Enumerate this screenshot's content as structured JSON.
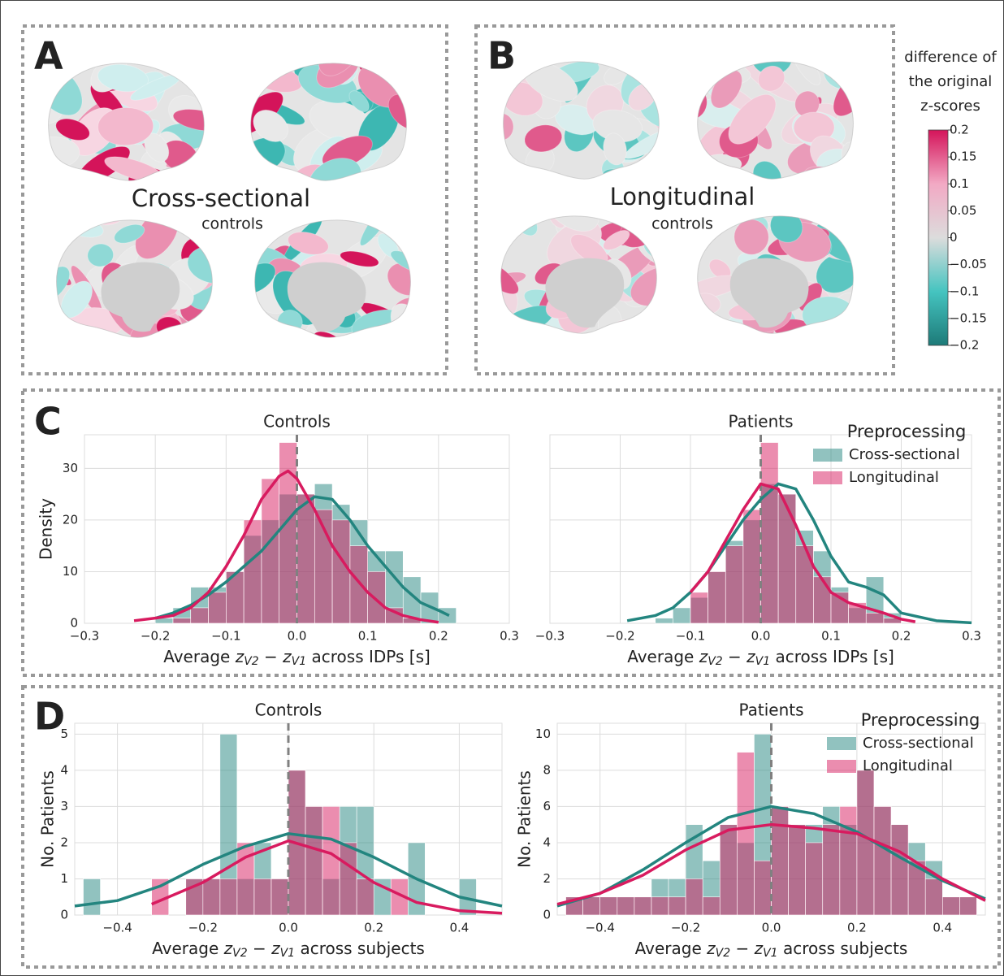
{
  "figure_panels": [
    {
      "label": "A",
      "title": "Cross-sectional",
      "subtitle": "controls"
    },
    {
      "label": "B",
      "title": "Longitudinal",
      "subtitle": "controls"
    }
  ],
  "colorbar": {
    "title": [
      "difference of",
      "the original",
      "z-scores"
    ],
    "lim": [
      -0.2,
      0.2
    ],
    "ticks": [
      0.2,
      0.15,
      0.1,
      0.05,
      0,
      {
        "value": -0.05,
        "label": "−0.05"
      },
      {
        "value": -0.1,
        "label": "−0.1"
      },
      {
        "value": -0.15,
        "label": "−0.15"
      },
      {
        "value": -0.2,
        "label": "−0.2"
      }
    ],
    "colors": [
      "#1d7a78",
      "#45c4c0",
      "#dcdcdc",
      "#f2a9c4",
      "#d4145a"
    ]
  },
  "row_labels": [
    "C",
    "D"
  ],
  "chart_data": [
    {
      "type": "histogram",
      "title": "Controls",
      "ylabel": "Density",
      "xlabel": [
        "Average ",
        "z",
        "V2",
        " − ",
        "z",
        "V1",
        " across IDPs [s]"
      ],
      "xlim": [
        -0.3,
        0.3
      ],
      "ylim": [
        0,
        36.5
      ],
      "xticks": [
        {
          "value": -0.3,
          "label": "−0.3"
        },
        {
          "value": -0.2,
          "label": "−0.2"
        },
        {
          "value": -0.1,
          "label": "−0.1"
        },
        {
          "value": 0,
          "label": "0.0"
        },
        0.1,
        0.2,
        0.3
      ],
      "yticks": [
        0,
        10,
        20,
        30
      ],
      "grid": true,
      "vline": 0,
      "series": [
        {
          "color": "#23857f",
          "bins": [
            -0.2,
            -0.175,
            -0.15,
            -0.125,
            -0.1,
            -0.075,
            -0.05,
            -0.025,
            0,
            0.025,
            0.05,
            0.075,
            0.1,
            0.125,
            0.15,
            0.175,
            0.2,
            0.225
          ],
          "values": [
            1,
            3,
            7,
            7,
            10,
            17,
            20,
            25,
            25,
            27,
            23,
            20,
            14,
            14,
            9,
            6,
            3
          ],
          "kde": {
            "x": [
              -0.2,
              -0.175,
              -0.15,
              -0.125,
              -0.1,
              -0.075,
              -0.05,
              -0.025,
              0,
              0.025,
              0.05,
              0.075,
              0.1,
              0.125,
              0.15,
              0.175,
              0.2,
              0.215
            ],
            "values": [
              1,
              2,
              3.5,
              5.5,
              8,
              11,
              14,
              18,
              22,
              24.5,
              24,
              20,
              15,
              11,
              7,
              4,
              2.5,
              1.5
            ]
          }
        },
        {
          "color": "#d81b5f",
          "bins": [
            -0.2,
            -0.175,
            -0.15,
            -0.125,
            -0.1,
            -0.075,
            -0.05,
            -0.025,
            0,
            0.025,
            0.05,
            0.075,
            0.1,
            0.125,
            0.15,
            0.175,
            0.2
          ],
          "values": [
            0,
            1,
            3,
            6,
            10,
            20,
            28,
            35,
            25,
            22,
            20,
            15,
            10,
            3,
            1,
            0
          ],
          "kde": {
            "x": [
              -0.23,
              -0.2,
              -0.175,
              -0.15,
              -0.125,
              -0.1,
              -0.075,
              -0.05,
              -0.025,
              -0.0125,
              0,
              0.025,
              0.05,
              0.075,
              0.1,
              0.125,
              0.15,
              0.175,
              0.2
            ],
            "values": [
              0.5,
              1,
              1.5,
              3,
              6,
              11,
              17,
              24,
              28.5,
              29.5,
              28,
              22,
              15,
              10,
              6,
              3,
              1.5,
              0.7,
              0.2
            ]
          }
        }
      ]
    },
    {
      "type": "histogram",
      "title": "Patients",
      "xlabel": [
        "Average ",
        "z",
        "V2",
        " − ",
        "z",
        "V1",
        " across IDPs [s]"
      ],
      "xlim": [
        -0.3,
        0.3
      ],
      "ylim": [
        0,
        36.5
      ],
      "xticks": [
        {
          "value": -0.3,
          "label": "−0.3"
        },
        {
          "value": -0.2,
          "label": "−0.2"
        },
        {
          "value": -0.1,
          "label": "−0.1"
        },
        {
          "value": 0,
          "label": "0.0"
        },
        0.1,
        0.2,
        0.3
      ],
      "yticks": [
        0,
        10,
        20,
        30
      ],
      "show_ytick_labels": false,
      "grid": true,
      "vline": 0,
      "legend": "upper right",
      "legend_title": "Preprocessing",
      "series": [
        {
          "name": "Cross-sectional",
          "color": "#23857f",
          "bins": [
            -0.15,
            -0.125,
            -0.1,
            -0.075,
            -0.05,
            -0.025,
            0,
            0.025,
            0.05,
            0.075,
            0.1,
            0.125,
            0.15,
            0.175,
            0.2
          ],
          "values": [
            1,
            3,
            5,
            10,
            16,
            20,
            27,
            25,
            18,
            14,
            7,
            3,
            9,
            2
          ],
          "kde": {
            "x": [
              -0.19,
              -0.15,
              -0.125,
              -0.1,
              -0.075,
              -0.05,
              -0.025,
              0,
              0.025,
              0.05,
              0.075,
              0.1,
              0.125,
              0.15,
              0.175,
              0.2,
              0.25,
              0.3
            ],
            "values": [
              0.5,
              1.5,
              3,
              6,
              10,
              15,
              20,
              24,
              27,
              26,
              20,
              13,
              8,
              7,
              5.5,
              2,
              0.5,
              0.1
            ]
          }
        },
        {
          "name": "Longitudinal",
          "color": "#d81b5f",
          "bins": [
            -0.1,
            -0.075,
            -0.05,
            -0.025,
            0,
            0.025,
            0.05,
            0.075,
            0.1,
            0.125,
            0.15,
            0.175,
            0.2
          ],
          "values": [
            6,
            10,
            15,
            22,
            35,
            25,
            15,
            9,
            6,
            4,
            2,
            1
          ],
          "kde": {
            "x": [
              -0.1,
              -0.075,
              -0.05,
              -0.025,
              0,
              0.025,
              0.05,
              0.075,
              0.1,
              0.125,
              0.15,
              0.175,
              0.2,
              0.22
            ],
            "values": [
              6,
              10,
              16,
              22,
              27,
              26,
              19,
              11,
              6,
              4,
              3,
              2,
              0.8,
              0.3
            ]
          }
        }
      ]
    },
    {
      "type": "histogram",
      "title": "Controls",
      "ylabel": "No. Patients",
      "xlabel": [
        "Average ",
        "z",
        "V2",
        " − ",
        "z",
        "V1",
        " across subjects"
      ],
      "xlim": [
        -0.5,
        0.5
      ],
      "ylim": [
        0,
        5.3
      ],
      "xticks": [
        {
          "value": -0.4,
          "label": "−0.4"
        },
        {
          "value": -0.2,
          "label": "−0.2"
        },
        {
          "value": 0,
          "label": "0.0"
        },
        0.2,
        0.4
      ],
      "yticks": [
        0,
        1,
        2,
        3,
        4,
        5
      ],
      "grid": true,
      "vline": 0,
      "series": [
        {
          "color": "#23857f",
          "bins": [
            -0.48,
            -0.44,
            -0.4,
            -0.36,
            -0.32,
            -0.28,
            -0.24,
            -0.2,
            -0.16,
            -0.12,
            -0.08,
            -0.04,
            0,
            0.04,
            0.08,
            0.12,
            0.16,
            0.2,
            0.24,
            0.28,
            0.32,
            0.36,
            0.4,
            0.44
          ],
          "values": [
            1,
            0,
            0,
            0,
            0,
            0,
            1,
            1,
            5,
            1,
            2,
            1,
            4,
            3,
            1,
            3,
            3,
            1,
            0,
            2,
            0,
            0,
            1
          ],
          "kde": {
            "x": [
              -0.5,
              -0.4,
              -0.3,
              -0.2,
              -0.1,
              0,
              0.1,
              0.2,
              0.3,
              0.4,
              0.5
            ],
            "values": [
              0.25,
              0.4,
              0.8,
              1.4,
              1.9,
              2.25,
              2.1,
              1.6,
              1,
              0.5,
              0.25
            ]
          }
        },
        {
          "color": "#d81b5f",
          "bins": [
            -0.32,
            -0.28,
            -0.24,
            -0.2,
            -0.16,
            -0.12,
            -0.08,
            -0.04,
            0,
            0.04,
            0.08,
            0.12,
            0.16,
            0.2,
            0.24,
            0.28
          ],
          "values": [
            1,
            0,
            1,
            1,
            1,
            2,
            1,
            1,
            4,
            3,
            3,
            2,
            1,
            0,
            1
          ],
          "kde": {
            "x": [
              -0.32,
              -0.2,
              -0.1,
              0,
              0.1,
              0.2,
              0.3,
              0.4,
              0.5
            ],
            "values": [
              0.3,
              0.9,
              1.6,
              2.05,
              1.7,
              0.9,
              0.35,
              0.12,
              0.05
            ]
          }
        }
      ]
    },
    {
      "type": "histogram",
      "title": "Patients",
      "ylabel": "No. Patients",
      "xlabel": [
        "Average ",
        "z",
        "V2",
        " − ",
        "z",
        "V1",
        " across subjects"
      ],
      "xlim": [
        -0.5,
        0.5
      ],
      "ylim": [
        0,
        10.6
      ],
      "xticks": [
        {
          "value": -0.4,
          "label": "−0.4"
        },
        {
          "value": -0.2,
          "label": "−0.2"
        },
        {
          "value": 0,
          "label": "0.0"
        },
        0.2,
        0.4
      ],
      "yticks": [
        0,
        2,
        4,
        6,
        8,
        10
      ],
      "grid": true,
      "vline": 0,
      "legend": "upper right",
      "legend_title": "Preprocessing",
      "series": [
        {
          "name": "Cross-sectional",
          "color": "#23857f",
          "bins": [
            -0.48,
            -0.44,
            -0.4,
            -0.36,
            -0.32,
            -0.28,
            -0.24,
            -0.2,
            -0.16,
            -0.12,
            -0.08,
            -0.04,
            0,
            0.04,
            0.08,
            0.12,
            0.16,
            0.2,
            0.24,
            0.28,
            0.32,
            0.36,
            0.4,
            0.44,
            0.48
          ],
          "values": [
            1,
            1,
            1,
            1,
            1,
            2,
            2,
            5,
            3,
            5,
            4,
            10,
            6,
            5,
            5,
            6,
            5,
            8,
            6,
            5,
            4,
            3,
            1,
            1
          ],
          "kde": {
            "x": [
              -0.5,
              -0.4,
              -0.3,
              -0.2,
              -0.1,
              0,
              0.1,
              0.2,
              0.3,
              0.4,
              0.5
            ],
            "values": [
              0.5,
              1.2,
              2.5,
              4,
              5.4,
              6,
              5.6,
              4.6,
              3.2,
              1.9,
              0.9
            ]
          }
        },
        {
          "name": "Longitudinal",
          "color": "#d81b5f",
          "bins": [
            -0.48,
            -0.44,
            -0.4,
            -0.36,
            -0.32,
            -0.28,
            -0.24,
            -0.2,
            -0.16,
            -0.12,
            -0.08,
            -0.04,
            0,
            0.04,
            0.08,
            0.12,
            0.16,
            0.2,
            0.24,
            0.28,
            0.32,
            0.36,
            0.4,
            0.44,
            0.48
          ],
          "values": [
            1,
            1,
            1,
            1,
            1,
            1,
            1,
            2,
            1,
            5,
            9,
            3,
            6,
            5,
            4,
            5,
            6,
            8,
            6,
            5,
            3,
            2,
            1,
            1
          ],
          "kde": {
            "x": [
              -0.5,
              -0.4,
              -0.3,
              -0.2,
              -0.1,
              0,
              0.1,
              0.2,
              0.3,
              0.4,
              0.5
            ],
            "values": [
              0.6,
              1.2,
              2.2,
              3.6,
              4.7,
              5,
              4.8,
              4.5,
              3.5,
              2,
              0.8
            ]
          }
        }
      ]
    }
  ]
}
